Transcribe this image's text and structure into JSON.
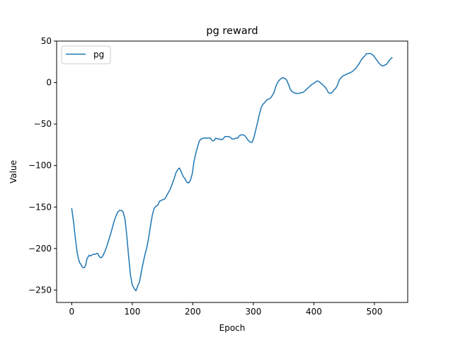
{
  "chart_data": {
    "type": "line",
    "title": "pg reward",
    "xlabel": "Epoch",
    "ylabel": "Value",
    "xlim": [
      -25,
      555
    ],
    "ylim": [
      -265,
      50
    ],
    "xticks": [
      0,
      100,
      200,
      300,
      400,
      500
    ],
    "yticks": [
      50,
      0,
      -50,
      -100,
      -150,
      -200,
      -250
    ],
    "xtick_labels": [
      "0",
      "100",
      "200",
      "300",
      "400",
      "500"
    ],
    "ytick_labels": [
      "50",
      "0",
      "−50",
      "−100",
      "−150",
      "−200",
      "−250"
    ],
    "grid": false,
    "legend_position": "top-left",
    "series": [
      {
        "name": "pg",
        "color": "#1f77b4",
        "x": [
          0,
          3,
          6,
          9,
          11,
          13,
          15,
          18,
          21,
          23,
          25,
          27,
          29,
          31,
          33,
          35,
          37,
          39,
          41,
          43,
          45,
          47,
          49,
          52,
          55,
          58,
          61,
          64,
          67,
          70,
          73,
          76,
          79,
          82,
          85,
          88,
          91,
          94,
          97,
          100,
          103,
          106,
          109,
          112,
          115,
          118,
          121,
          124,
          127,
          130,
          133,
          136,
          139,
          142,
          145,
          148,
          151,
          154,
          157,
          160,
          163,
          166,
          169,
          172,
          175,
          178,
          181,
          184,
          187,
          190,
          193,
          196,
          199,
          202,
          205,
          208,
          211,
          214,
          217,
          220,
          223,
          226,
          229,
          232,
          235,
          238,
          241,
          244,
          247,
          250,
          253,
          256,
          259,
          262,
          265,
          268,
          271,
          274,
          277,
          280,
          283,
          286,
          289,
          292,
          295,
          298,
          301,
          304,
          307,
          310,
          313,
          316,
          319,
          322,
          325,
          328,
          331,
          334,
          337,
          340,
          343,
          346,
          349,
          352,
          355,
          358,
          361,
          364,
          367,
          370,
          373,
          376,
          379,
          382,
          385,
          388,
          391,
          394,
          397,
          400,
          403,
          406,
          409,
          412,
          415,
          418,
          421,
          424,
          427,
          430,
          433,
          436,
          439,
          442,
          445,
          448,
          451,
          454,
          457,
          460,
          463,
          466,
          469,
          472,
          475,
          478,
          481,
          484,
          487,
          490,
          493,
          496,
          499,
          502,
          505,
          508,
          511,
          514,
          517,
          520,
          523,
          526,
          529
        ],
        "y": [
          -152,
          -168,
          -188,
          -205,
          -212,
          -217,
          -219,
          -223,
          -223,
          -220,
          -213,
          -210,
          -208,
          -209,
          -208,
          -207,
          -207,
          -207,
          -206,
          -206,
          -209,
          -211,
          -211,
          -208,
          -203,
          -197,
          -190,
          -183,
          -175,
          -167,
          -161,
          -156,
          -154,
          -154,
          -156,
          -165,
          -185,
          -210,
          -232,
          -244,
          -248,
          -251,
          -245,
          -240,
          -228,
          -217,
          -207,
          -199,
          -187,
          -173,
          -160,
          -152,
          -149,
          -148,
          -143,
          -142,
          -141,
          -140,
          -136,
          -132,
          -128,
          -122,
          -116,
          -109,
          -105,
          -103,
          -108,
          -113,
          -116,
          -120,
          -121,
          -118,
          -110,
          -95,
          -85,
          -77,
          -70,
          -68,
          -67,
          -67,
          -67,
          -67,
          -67,
          -70,
          -70,
          -67,
          -68,
          -68,
          -69,
          -68,
          -65,
          -65,
          -65,
          -66,
          -68,
          -68,
          -67,
          -67,
          -64,
          -63,
          -63,
          -64,
          -67,
          -70,
          -72,
          -72,
          -66,
          -57,
          -48,
          -38,
          -30,
          -26,
          -24,
          -21,
          -20,
          -19,
          -16,
          -12,
          -5,
          0,
          3,
          5,
          6,
          5,
          3,
          -2,
          -8,
          -11,
          -12,
          -13,
          -13,
          -13,
          -12,
          -12,
          -10,
          -8,
          -6,
          -4,
          -2,
          -1,
          1,
          2,
          1,
          -1,
          -3,
          -5,
          -8,
          -12,
          -13,
          -12,
          -9,
          -7,
          -3,
          3,
          6,
          8,
          9,
          10,
          11,
          12,
          13,
          15,
          17,
          20,
          23,
          27,
          30,
          32,
          35,
          35,
          35,
          34,
          32,
          29,
          26,
          23,
          21,
          20,
          21,
          22,
          25,
          28,
          30
        ]
      }
    ]
  }
}
